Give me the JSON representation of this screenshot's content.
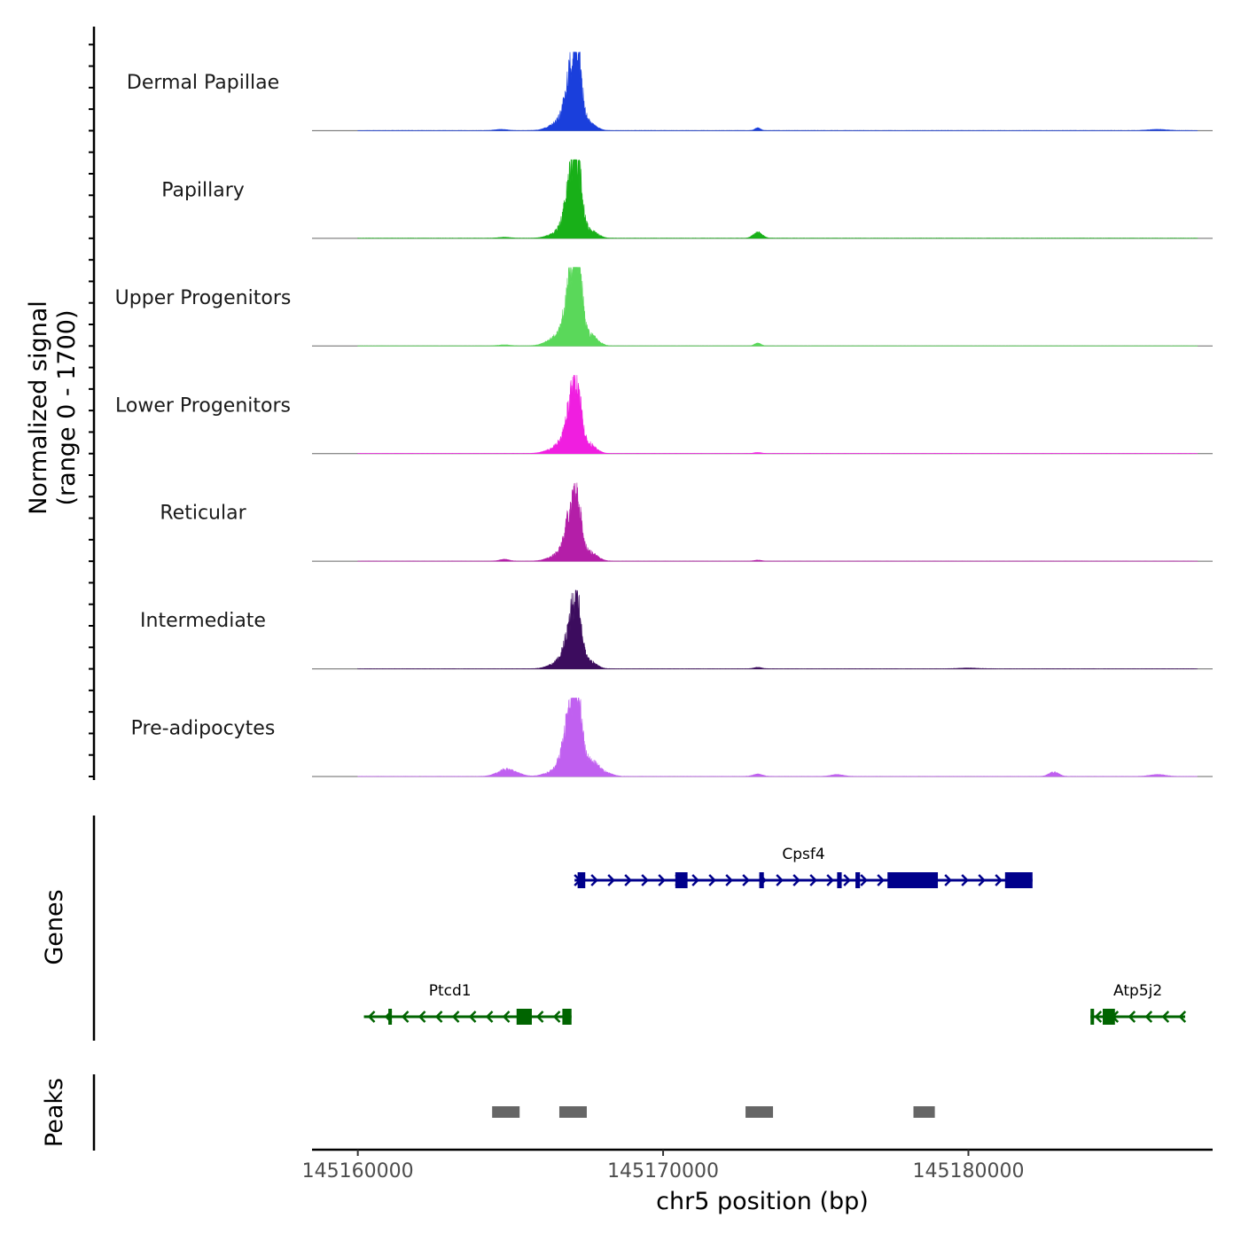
{
  "chart_data": {
    "type": "area",
    "chromosome": "chr5",
    "x_range": [
      145158500,
      145188000
    ],
    "x_ticks": [
      145160000,
      145170000,
      145180000
    ],
    "x_tick_labels": [
      "145160000",
      "145170000",
      "145180000"
    ],
    "xlabel": "chr5 position (bp)",
    "ylabel_line1": "Normalized signal",
    "ylabel_line2": "(range 0 - 1700)",
    "y_range": [
      0,
      1700
    ],
    "background_color": "#d9d9d9",
    "tracks": [
      {
        "name": "Dermal Papillae",
        "color": "#1a3fdc",
        "peaks": [
          [
            145166600,
            200,
            300
          ],
          [
            145166900,
            150,
            250
          ],
          [
            145167000,
            1300,
            180
          ],
          [
            145167200,
            1400,
            140
          ],
          [
            145167450,
            130,
            200
          ],
          [
            145167650,
            110,
            200
          ],
          [
            145173100,
            60,
            90
          ],
          [
            145164700,
            25,
            200
          ],
          [
            145186200,
            25,
            300
          ]
        ]
      },
      {
        "name": "Papillary",
        "color": "#18b018",
        "peaks": [
          [
            145166600,
            140,
            300
          ],
          [
            145166900,
            210,
            250
          ],
          [
            145167000,
            1300,
            180
          ],
          [
            145167200,
            1400,
            140
          ],
          [
            145167450,
            150,
            200
          ],
          [
            145167700,
            120,
            200
          ],
          [
            145173100,
            150,
            140
          ],
          [
            145164800,
            20,
            200
          ]
        ]
      },
      {
        "name": "Upper Progenitors",
        "color": "#5ad85a",
        "peaks": [
          [
            145166500,
            180,
            300
          ],
          [
            145166850,
            280,
            250
          ],
          [
            145167000,
            1500,
            180
          ],
          [
            145167200,
            1650,
            140
          ],
          [
            145167450,
            200,
            200
          ],
          [
            145167700,
            170,
            200
          ],
          [
            145173100,
            60,
            100
          ],
          [
            145164800,
            20,
            200
          ]
        ]
      },
      {
        "name": "Lower Progenitors",
        "color": "#f01ee0",
        "peaks": [
          [
            145166500,
            120,
            300
          ],
          [
            145166850,
            280,
            250
          ],
          [
            145167000,
            1050,
            170
          ],
          [
            145167200,
            1150,
            130
          ],
          [
            145167450,
            180,
            200
          ],
          [
            145167650,
            130,
            200
          ],
          [
            145173100,
            20,
            120
          ]
        ]
      },
      {
        "name": "Reticular",
        "color": "#b41ea8",
        "peaks": [
          [
            145166600,
            160,
            300
          ],
          [
            145166900,
            200,
            250
          ],
          [
            145167000,
            1050,
            170
          ],
          [
            145167200,
            1150,
            130
          ],
          [
            145167450,
            150,
            200
          ],
          [
            145167700,
            140,
            200
          ],
          [
            145164800,
            40,
            150
          ],
          [
            145173100,
            20,
            120
          ]
        ]
      },
      {
        "name": "Intermediate",
        "color": "#3c0c5e",
        "peaks": [
          [
            145166600,
            140,
            300
          ],
          [
            145166850,
            200,
            250
          ],
          [
            145167000,
            1050,
            170
          ],
          [
            145167200,
            1150,
            130
          ],
          [
            145167450,
            150,
            200
          ],
          [
            145167650,
            110,
            200
          ],
          [
            145173100,
            30,
            120
          ],
          [
            145180000,
            15,
            300
          ]
        ]
      },
      {
        "name": "Pre-adipocytes",
        "color": "#c060f0",
        "peaks": [
          [
            145166500,
            150,
            300
          ],
          [
            145166800,
            500,
            200
          ],
          [
            145167000,
            1400,
            170
          ],
          [
            145167200,
            1600,
            130
          ],
          [
            145167450,
            300,
            200
          ],
          [
            145167700,
            200,
            200
          ],
          [
            145168000,
            120,
            250
          ],
          [
            145164800,
            140,
            250
          ],
          [
            145165100,
            80,
            250
          ],
          [
            145182800,
            110,
            150
          ],
          [
            145173100,
            50,
            150
          ],
          [
            145175700,
            40,
            200
          ],
          [
            145186200,
            40,
            250
          ]
        ]
      }
    ],
    "genes": [
      {
        "name": "Cpsf4",
        "strand": "+",
        "color": "#00008b",
        "row": 1,
        "start": 145167100,
        "end": 145182100,
        "exons": [
          [
            145167200,
            145167450
          ],
          [
            145170400,
            145170800
          ],
          [
            145173150,
            145173300
          ],
          [
            145175700,
            145175850
          ],
          [
            145176300,
            145176450
          ],
          [
            145177350,
            145179000
          ],
          [
            145181200,
            145182100
          ]
        ]
      },
      {
        "name": "Ptcd1",
        "strand": "-",
        "color": "#006400",
        "row": 2,
        "start": 145160200,
        "end": 145167000,
        "exons": [
          [
            145161000,
            145161100
          ],
          [
            145165200,
            145165700
          ],
          [
            145166700,
            145167000
          ]
        ]
      },
      {
        "name": "Atp5j2",
        "strand": "-",
        "color": "#006400",
        "row": 2,
        "start": 145184000,
        "end": 145187100,
        "exons": [
          [
            145184000,
            145184100
          ],
          [
            145184400,
            145184800
          ]
        ]
      }
    ],
    "genes_label": "Genes",
    "peaks_label": "Peaks",
    "peak_color": "#666666",
    "peak_regions": [
      [
        145164400,
        145165300
      ],
      [
        145166600,
        145167500
      ],
      [
        145172700,
        145173600
      ],
      [
        145178200,
        145178900
      ]
    ]
  }
}
